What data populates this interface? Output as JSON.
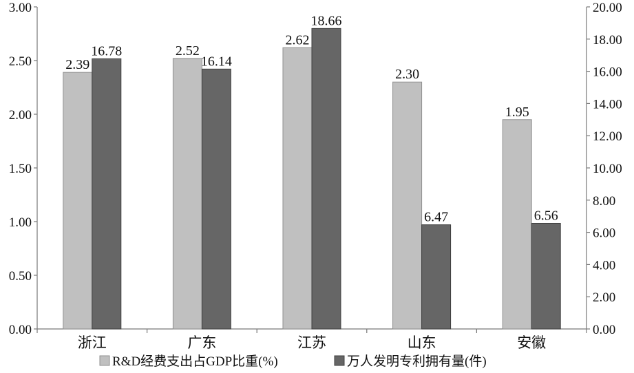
{
  "colors": {
    "series1": "#c0c0c0",
    "series1_edge": "#8f8f8f",
    "series2": "#666666",
    "series2_edge": "#3f3f3f",
    "axis": "#777777"
  },
  "chart_data": {
    "type": "bar",
    "categories": [
      "浙江",
      "广东",
      "江苏",
      "山东",
      "安徽"
    ],
    "series": [
      {
        "name": "R&D经费支出占GDP比重(%)",
        "axis": "left",
        "values": [
          2.39,
          2.52,
          2.62,
          2.3,
          1.95
        ],
        "labels": [
          "2.39",
          "2.52",
          "2.62",
          "2.30",
          "1.95"
        ]
      },
      {
        "name": "万人发明专利拥有量(件)",
        "axis": "right",
        "values": [
          16.78,
          16.14,
          18.66,
          6.47,
          6.56
        ],
        "labels": [
          "16.78",
          "16.14",
          "18.66",
          "6.47",
          "6.56"
        ]
      }
    ],
    "ylim_left": [
      0,
      3
    ],
    "yticks_left": [
      "0.00",
      "0.50",
      "1.00",
      "1.50",
      "2.00",
      "2.50",
      "3.00"
    ],
    "ylim_right": [
      0,
      20
    ],
    "yticks_right": [
      "0.00",
      "2.00",
      "4.00",
      "6.00",
      "8.00",
      "10.00",
      "12.00",
      "14.00",
      "16.00",
      "18.00",
      "20.00"
    ],
    "grid": false,
    "legend_position": "bottom"
  }
}
